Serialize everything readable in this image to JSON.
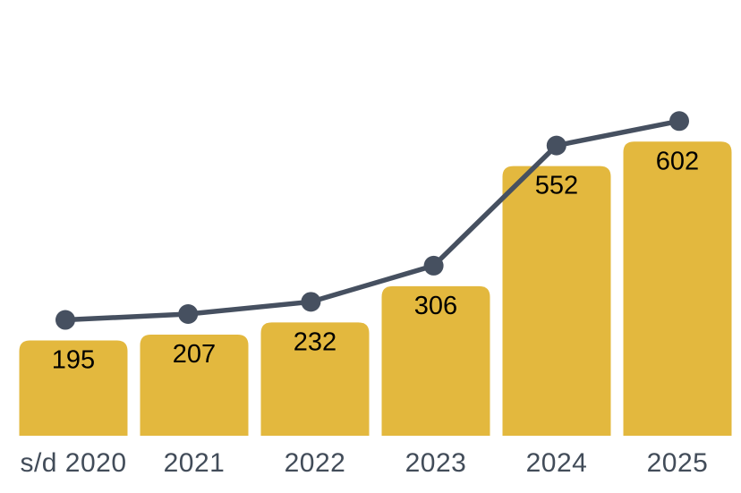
{
  "chart_data": {
    "type": "bar",
    "categories": [
      "s/d 2020",
      "2021",
      "2022",
      "2023",
      "2024",
      "2025"
    ],
    "values": [
      195,
      207,
      232,
      306,
      552,
      602
    ],
    "data_labels": [
      "195",
      "207",
      "232",
      "306",
      "552",
      "602"
    ],
    "series": [
      {
        "name": "bars",
        "type": "bar",
        "values": [
          195,
          207,
          232,
          306,
          552,
          602
        ]
      },
      {
        "name": "trend",
        "type": "line",
        "marker": "circle",
        "values": [
          195,
          207,
          232,
          306,
          552,
          602
        ]
      }
    ],
    "title": "",
    "xlabel": "",
    "ylabel": "",
    "ylim": [
      0,
      650
    ],
    "grid": false,
    "legend": "none",
    "value_labels_position": "inside-top",
    "axis_line": "none"
  },
  "colors": {
    "bar": "#E3B83E",
    "line": "#465060",
    "marker": "#465060",
    "value_label": "#000000",
    "axis_label": "#424C59",
    "background": "#FFFFFF"
  }
}
